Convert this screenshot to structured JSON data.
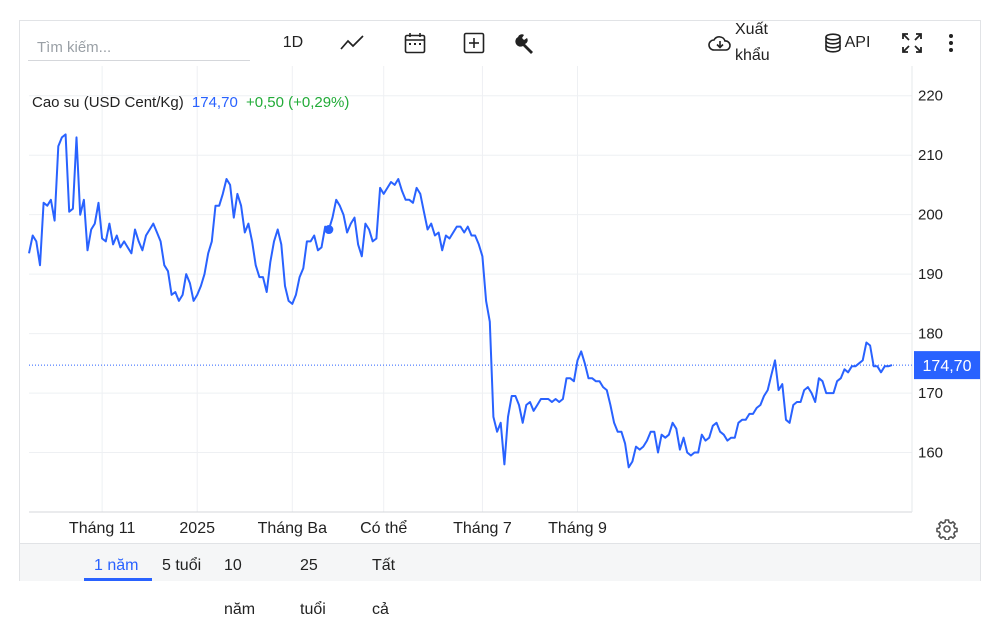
{
  "toolbar": {
    "search_placeholder": "Tìm kiếm...",
    "interval": "1D",
    "export_line1": "Xuất",
    "export_line2": "khẩu",
    "api": "API",
    "icons": [
      "line-chart-icon",
      "calendar-icon",
      "add-compare-icon",
      "wrench-icon",
      "cloud-download-icon",
      "database-icon",
      "fullscreen-icon",
      "more-vertical-icon"
    ]
  },
  "legend": {
    "name": "Cao su (USD Cent/Kg)",
    "last": "174,70",
    "change": "+0,50 (+0,29%)",
    "change_color": "#22ab38"
  },
  "price_badge": "174,70",
  "ranges": [
    "1 năm",
    "5 tuổi",
    "10 năm",
    "25 tuổi",
    "Tất cả"
  ],
  "active_range": "1 năm",
  "colors": {
    "line": "#2962ff",
    "badge": "#2962ff",
    "grid": "#eef0f3"
  },
  "chart_data": {
    "type": "line",
    "title": "Cao su (USD Cent/Kg)",
    "ylim": [
      150,
      225
    ],
    "yticks": [
      160,
      170,
      180,
      190,
      200,
      210,
      220
    ],
    "xtick_labels": [
      "Tháng 11",
      "2025",
      "Tháng Ba",
      "Có thể",
      "Tháng 7",
      "Tháng 9"
    ],
    "xtick_positions": [
      20,
      46,
      72,
      97,
      124,
      150
    ],
    "last_value": 174.7,
    "marker_index": 82,
    "grid": true,
    "series": [
      {
        "values": [
          193.5,
          196.5,
          195.5,
          191.5,
          202,
          201.5,
          202.5,
          199,
          211.5,
          213,
          213.5,
          200.5,
          201,
          213,
          200,
          202.5,
          194,
          197.5,
          198.5,
          202,
          196,
          195.5,
          198.5,
          195,
          196.5,
          194.5,
          195.5,
          194.5,
          193.5,
          197.5,
          195.5,
          194,
          196.5,
          197.5,
          198.5,
          197,
          195.5,
          191.5,
          190.5,
          186.5,
          187,
          185.5,
          186.5,
          190,
          188.5,
          185.5,
          186.5,
          188,
          190,
          193.5,
          195.5,
          201.5,
          201.5,
          203.5,
          206,
          205,
          199.5,
          203.5,
          201.5,
          197,
          198.5,
          195.5,
          191.5,
          189.5,
          189.5,
          187,
          192,
          195.5,
          197.5,
          195,
          188,
          185.5,
          185,
          186.5,
          189.5,
          191,
          195.5,
          195.5,
          196.5,
          194,
          194.5,
          198,
          197.5,
          199.5,
          202.5,
          201.5,
          200,
          197,
          198.5,
          199.5,
          195,
          193,
          198.5,
          197.5,
          195.5,
          196,
          204.5,
          203.5,
          204.5,
          205.5,
          205,
          206,
          204,
          202.5,
          202.5,
          202,
          204.5,
          203.5,
          200.5,
          197.5,
          198.5,
          196.5,
          197,
          194,
          196.5,
          196,
          197,
          198,
          198,
          197,
          198,
          196.5,
          196.5,
          195,
          193,
          185.5,
          182,
          166,
          163.5,
          165,
          158,
          166,
          169.5,
          169.5,
          168,
          165,
          168,
          168.5,
          167,
          168,
          169,
          169,
          169,
          168.5,
          169,
          168.5,
          169,
          172.5,
          172.5,
          172,
          175.5,
          177,
          175,
          172.5,
          172.5,
          172,
          172,
          171,
          170.5,
          168,
          165,
          163.5,
          163.5,
          161.5,
          157.5,
          158.5,
          161,
          160.5,
          161,
          162,
          163.5,
          163.5,
          160,
          163,
          162.5,
          163,
          165,
          164,
          160.5,
          162.5,
          160,
          159.5,
          160,
          160,
          163,
          162,
          162.5,
          164.5,
          165,
          163.5,
          163,
          162,
          162.5,
          162.5,
          165,
          165.5,
          165.5,
          166.5,
          166.5,
          167.5,
          168,
          169.5,
          170.5,
          173,
          175.5,
          170.5,
          171.5,
          165.5,
          165,
          168,
          168.5,
          168.5,
          170.5,
          171,
          170,
          168.5,
          172.5,
          172,
          170,
          170,
          170,
          172,
          172.5,
          174,
          173.5,
          174.5,
          174.5,
          175,
          175.5,
          178.5,
          178,
          174.5,
          174.5,
          173.5,
          174.5,
          174.5,
          174.7
        ]
      }
    ]
  }
}
